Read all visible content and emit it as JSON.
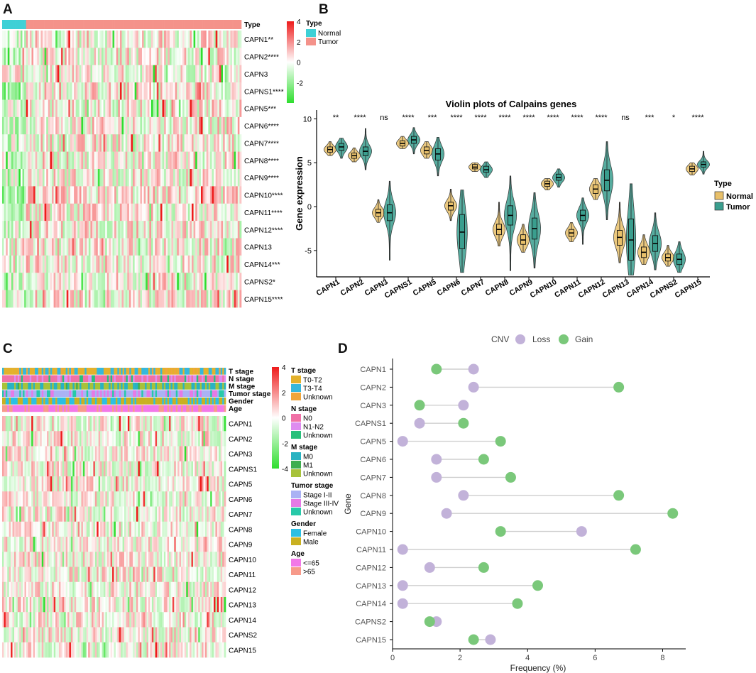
{
  "colors": {
    "normal": "#3fd0d6",
    "tumor": "#f4928a",
    "heat_high": "#ee1b1b",
    "heat_mid": "#ffffff",
    "heat_low": "#2ede2e",
    "violin_normal": "#e8c06a",
    "violin_tumor": "#3a9e8e",
    "cnv_loss": "#c2b2d9",
    "cnv_gain": "#7ac87a",
    "t_T0T2": "#e3b12c",
    "t_T3T4": "#35b7dc",
    "t_unknown": "#f0a53a",
    "n_N0": "#f071a6",
    "n_N1N2": "#de8cf0",
    "n_unknown": "#28c07a",
    "m_M0": "#28b3c2",
    "m_M1": "#3fae4f",
    "m_unknown": "#a7c23a",
    "ts_I": "#aab2f4",
    "ts_III": "#e57ae6",
    "ts_unknown": "#27c9a9",
    "g_female": "#2bbfe3",
    "g_male": "#c9b021",
    "a_le65": "#f278e8",
    "a_gt65": "#f79a8a"
  },
  "panel_letters": [
    "A",
    "B",
    "C",
    "D"
  ],
  "chart_data": [
    {
      "panel": "A",
      "type": "heatmap",
      "annotation_label": "Type",
      "rows": [
        "CAPN1**",
        "CAPN2****",
        "CAPN3",
        "CAPNS1****",
        "CAPN5***",
        "CAPN6****",
        "CAPN7****",
        "CAPN8****",
        "CAPN9****",
        "CAPN10****",
        "CAPN11****",
        "CAPN12****",
        "CAPN13",
        "CAPN14***",
        "CAPNS2*",
        "CAPN15****"
      ],
      "column_groups": [
        {
          "name": "Normal",
          "fraction": 0.1
        },
        {
          "name": "Tumor",
          "fraction": 0.9
        }
      ],
      "colorbar": {
        "ticks": [
          4,
          2,
          0,
          -2
        ],
        "range": [
          -4,
          4
        ]
      },
      "legend": {
        "title": "Type",
        "items": [
          "Normal",
          "Tumor"
        ]
      }
    },
    {
      "panel": "B",
      "type": "violin",
      "title": "Violin plots of Calpains genes",
      "ylabel": "Gene expression",
      "xlabel": "",
      "ylim": [
        -8,
        11
      ],
      "yticks": [
        10,
        5,
        0,
        -5
      ],
      "legend": {
        "title": "Type",
        "items": [
          "Normal",
          "Tumor"
        ]
      },
      "categories": [
        "CAPN1",
        "CAPN2",
        "CAPN3",
        "CAPNS1",
        "CAPN5",
        "CAPN6",
        "CAPN7",
        "CAPN8",
        "CAPN9",
        "CAPN10",
        "CAPN11",
        "CAPN12",
        "CAPN13",
        "CAPN14",
        "CAPNS2",
        "CAPN15"
      ],
      "significance": [
        "**",
        "****",
        "ns",
        "****",
        "***",
        "****",
        "****",
        "****",
        "****",
        "****",
        "****",
        "****",
        "ns",
        "***",
        "*",
        "****"
      ],
      "series": [
        {
          "name": "Normal",
          "median": [
            6.5,
            5.8,
            -0.7,
            7.2,
            6.4,
            0.1,
            4.5,
            -2.6,
            -3.8,
            2.6,
            -3.0,
            2.0,
            -3.5,
            -5.2,
            -5.8,
            4.3
          ],
          "q1": [
            6.2,
            5.5,
            -1.1,
            6.9,
            6.0,
            -0.4,
            4.3,
            -3.2,
            -4.3,
            2.3,
            -3.4,
            1.5,
            -4.4,
            -5.8,
            -6.2,
            4.0
          ],
          "q3": [
            6.8,
            6.1,
            -0.3,
            7.5,
            6.8,
            0.5,
            4.8,
            -2.0,
            -3.2,
            2.9,
            -2.6,
            2.5,
            -2.7,
            -4.6,
            -5.4,
            4.6
          ],
          "min": [
            5.8,
            5.1,
            -1.8,
            6.6,
            5.5,
            -1.6,
            4.0,
            -4.5,
            -5.2,
            1.9,
            -4.0,
            0.8,
            -6.4,
            -6.6,
            -6.8,
            3.6
          ],
          "max": [
            7.4,
            6.7,
            0.8,
            8.0,
            7.4,
            2.0,
            5.0,
            0.5,
            -2.0,
            3.2,
            -1.8,
            3.2,
            0.5,
            -3.2,
            -4.4,
            5.0
          ]
        },
        {
          "name": "Tumor",
          "median": [
            6.8,
            6.3,
            -0.7,
            7.6,
            6.0,
            -2.9,
            4.2,
            -1.0,
            -2.5,
            3.3,
            -1.0,
            3.0,
            -3.8,
            -4.2,
            -6.0,
            4.8
          ],
          "q1": [
            6.4,
            5.8,
            -1.6,
            7.2,
            5.3,
            -4.8,
            3.9,
            -2.1,
            -3.7,
            3.0,
            -1.6,
            1.8,
            -6.1,
            -5.1,
            -6.6,
            4.5
          ],
          "q3": [
            7.2,
            6.8,
            0.2,
            8.0,
            6.6,
            -0.9,
            4.6,
            0.1,
            -1.3,
            3.7,
            -0.4,
            4.2,
            -1.4,
            -3.3,
            -5.4,
            5.1
          ],
          "min": [
            5.5,
            4.2,
            -6.1,
            6.0,
            3.5,
            -7.5,
            3.3,
            -7.3,
            -7.0,
            2.2,
            -4.3,
            -1.5,
            -7.8,
            -7.2,
            -7.5,
            3.7
          ],
          "max": [
            7.8,
            8.9,
            2.9,
            9.0,
            7.9,
            1.9,
            5.1,
            3.5,
            1.6,
            4.3,
            1.0,
            7.4,
            2.6,
            -0.7,
            -4.0,
            6.3
          ]
        }
      ]
    },
    {
      "panel": "C",
      "type": "heatmap",
      "annotation_labels": [
        "T stage",
        "N stage",
        "M stage",
        "Tumor stage",
        "Gender",
        "Age"
      ],
      "rows": [
        "CAPN1",
        "CAPN2",
        "CAPN3",
        "CAPNS1",
        "CAPN5",
        "CAPN6",
        "CAPN7",
        "CAPN8",
        "CAPN9",
        "CAPN10",
        "CAPN11",
        "CAPN12",
        "CAPN13",
        "CAPN14",
        "CAPNS2",
        "CAPN15"
      ],
      "colorbar": {
        "ticks": [
          4,
          2,
          0,
          -2,
          -4
        ],
        "range": [
          -4,
          4
        ]
      },
      "legends": [
        {
          "title": "T stage",
          "items": [
            "T0-T2",
            "T3-T4",
            "Unknown"
          ]
        },
        {
          "title": "N stage",
          "items": [
            "N0",
            "N1-N2",
            "Unknown"
          ]
        },
        {
          "title": "M stage",
          "items": [
            "M0",
            "M1",
            "Unknown"
          ]
        },
        {
          "title": "Tumor stage",
          "items": [
            "Stage I-II",
            "Stage III-IV",
            "Unknown"
          ]
        },
        {
          "title": "Gender",
          "items": [
            "Female",
            "Male"
          ]
        },
        {
          "title": "Age",
          "items": [
            "<=65",
            ">65"
          ]
        }
      ]
    },
    {
      "panel": "D",
      "type": "dumbbell",
      "legend_title": "CNV",
      "series_names": [
        "Loss",
        "Gain"
      ],
      "ylabel": "Gene",
      "xlabel": "Frequency (%)",
      "xlim": [
        0,
        8.6
      ],
      "xticks": [
        0,
        2,
        4,
        6,
        8
      ],
      "categories": [
        "CAPN1",
        "CAPN2",
        "CAPN3",
        "CAPNS1",
        "CAPN5",
        "CAPN6",
        "CAPN7",
        "CAPN8",
        "CAPN9",
        "CAPN10",
        "CAPN11",
        "CAPN12",
        "CAPN13",
        "CAPN14",
        "CAPNS2",
        "CAPN15"
      ],
      "loss": [
        2.4,
        2.4,
        2.1,
        0.8,
        0.3,
        1.3,
        1.3,
        2.1,
        1.6,
        5.6,
        0.3,
        1.1,
        0.3,
        0.3,
        1.3,
        2.9
      ],
      "gain": [
        1.3,
        6.7,
        0.8,
        2.1,
        3.2,
        2.7,
        3.5,
        6.7,
        8.3,
        3.2,
        7.2,
        2.7,
        4.3,
        3.7,
        1.1,
        2.4
      ]
    }
  ]
}
